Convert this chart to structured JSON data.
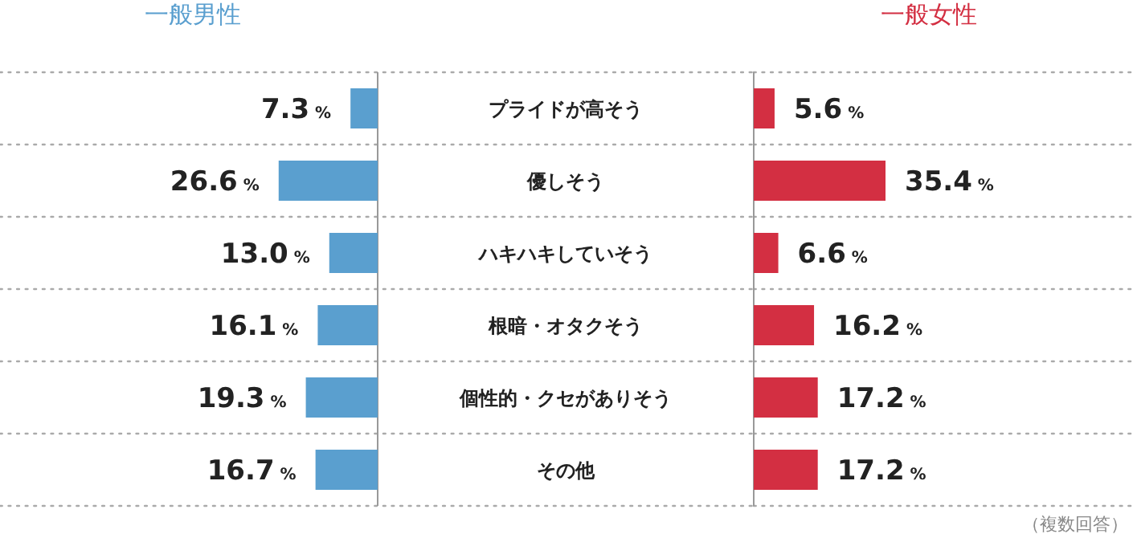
{
  "chart_data": [
    {
      "type": "bar",
      "orientation": "horizontal",
      "title": "一般男性",
      "categories": [
        "プライドが高そう",
        "優しそう",
        "ハキハキしていそう",
        "根暗・オタクそう",
        "個性的・クセがありそう",
        "その他"
      ],
      "values": [
        7.3,
        26.6,
        13.0,
        16.1,
        19.3,
        16.7
      ],
      "value_labels": [
        "7.3 %",
        "26.6 %",
        "13.0 %",
        "16.1 %",
        "19.3 %",
        "16.7 %"
      ],
      "color": "#5a9fcf",
      "grid": "y"
    },
    {
      "type": "bar",
      "orientation": "horizontal",
      "title": "一般女性",
      "categories": [
        null,
        null,
        null,
        null,
        null,
        null
      ],
      "values": [
        5.6,
        35.4,
        6.6,
        16.2,
        17.2,
        17.2
      ],
      "value_labels": [
        "5.6 %",
        "35.4 %",
        "6.6 %",
        "16.2 %",
        "17.2 %",
        "17.2 %"
      ],
      "color": "#d32f42",
      "grid": "y",
      "annotations": [
        "（複数回答）"
      ]
    }
  ]
}
